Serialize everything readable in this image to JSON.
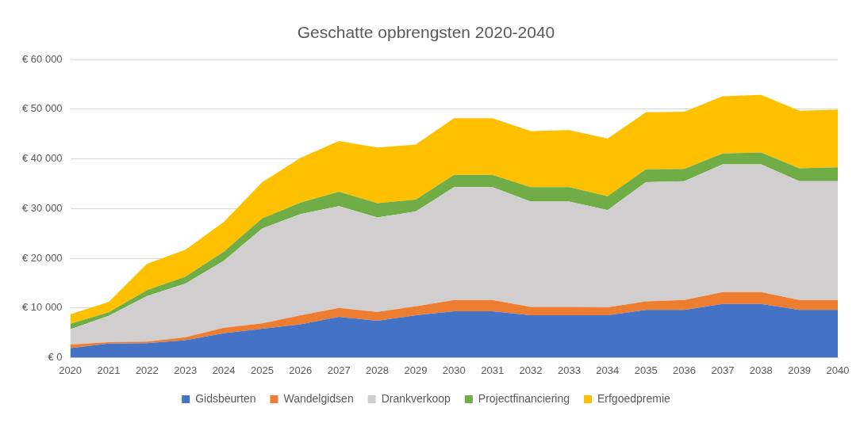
{
  "chart_data": {
    "type": "area",
    "title": "Geschatte opbrengsten 2020-2040",
    "stacked": true,
    "grid": "y",
    "legend": "bottom",
    "categories": [
      "2020",
      "2021",
      "2022",
      "2023",
      "2024",
      "2025",
      "2026",
      "2027",
      "2028",
      "2029",
      "2030",
      "2031",
      "2032",
      "2033",
      "2034",
      "2035",
      "2036",
      "2037",
      "2038",
      "2039",
      "2040"
    ],
    "ylim": [
      0,
      60000
    ],
    "yticks": [
      {
        "value": 0,
        "label": "€ 0"
      },
      {
        "value": 10000,
        "label": "€ 10 000"
      },
      {
        "value": 20000,
        "label": "€ 20 000"
      },
      {
        "value": 30000,
        "label": "€ 30 000"
      },
      {
        "value": 40000,
        "label": "€ 40 000"
      },
      {
        "value": 50000,
        "label": "€ 50 000"
      },
      {
        "value": 60000,
        "label": "€ 60 000"
      }
    ],
    "series": [
      {
        "name": "Gidsbeurten",
        "color": "#4472c4",
        "values": [
          1900,
          2800,
          2900,
          3500,
          4900,
          5800,
          6700,
          8200,
          7400,
          8500,
          9300,
          9300,
          8500,
          8500,
          8500,
          9600,
          9600,
          10800,
          10800,
          9600,
          9600
        ]
      },
      {
        "name": "Wandelgidsen",
        "color": "#ed7d31",
        "values": [
          700,
          300,
          300,
          600,
          1100,
          1100,
          1800,
          1800,
          1800,
          1800,
          2300,
          2300,
          1700,
          1700,
          1600,
          1700,
          2000,
          2400,
          2400,
          2000,
          2000
        ]
      },
      {
        "name": "Drankverkoop",
        "color": "#d0cece",
        "values": [
          3100,
          5300,
          9200,
          10800,
          13500,
          19100,
          20400,
          20500,
          19000,
          19100,
          22700,
          22700,
          21200,
          21200,
          19600,
          24000,
          23900,
          25700,
          25700,
          23900,
          23900
        ]
      },
      {
        "name": "Projectfinanciering",
        "color": "#70ad47",
        "values": [
          1100,
          700,
          1200,
          1400,
          1800,
          2000,
          2300,
          2900,
          2900,
          2400,
          2500,
          2500,
          2900,
          2900,
          2800,
          2600,
          2500,
          2200,
          2400,
          2600,
          2800
        ]
      },
      {
        "name": "Erfgoedpremie",
        "color": "#ffc000",
        "values": [
          1900,
          2100,
          5300,
          5400,
          6000,
          7300,
          9000,
          10200,
          11200,
          11100,
          11400,
          11400,
          11300,
          11500,
          11600,
          11500,
          11500,
          11500,
          11600,
          11600,
          11600
        ]
      }
    ]
  }
}
